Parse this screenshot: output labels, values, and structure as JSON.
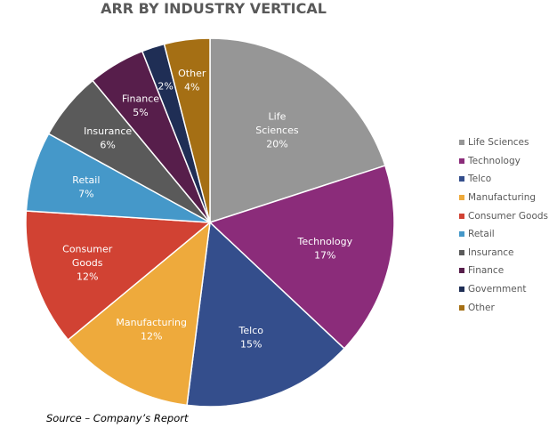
{
  "chart_data": {
    "type": "pie",
    "title": "ARR BY INDUSTRY VERTICAL",
    "categories": [
      "Life Sciences",
      "Technology",
      "Telco",
      "Manufacturing",
      "Consumer Goods",
      "Retail",
      "Insurance",
      "Finance",
      "Government",
      "Other"
    ],
    "values": [
      20,
      17,
      15,
      12,
      12,
      7,
      6,
      5,
      2,
      4
    ],
    "unit": "%",
    "data_labels": [
      [
        "Life",
        "Sciences",
        "20%"
      ],
      [
        "Technology",
        "17%"
      ],
      [
        "Telco",
        "15%"
      ],
      [
        "Manufacturing",
        "12%"
      ],
      [
        "Consumer",
        "Goods",
        "12%"
      ],
      [
        "Retail",
        "7%"
      ],
      [
        "Insurance",
        "6%"
      ],
      [
        "Finance",
        "5%"
      ],
      [
        "2%"
      ],
      [
        "Other",
        "4%"
      ]
    ],
    "colors": [
      "#969696",
      "#8B2C7A",
      "#344E8C",
      "#EEAA3C",
      "#D14233",
      "#4598C9",
      "#5A5A5A",
      "#571E4B",
      "#1F2E55",
      "#A56F14"
    ],
    "legend_position": "right",
    "start_angle_deg": 0,
    "direction": "clockwise"
  },
  "source_note": "Source – Company’s Report"
}
